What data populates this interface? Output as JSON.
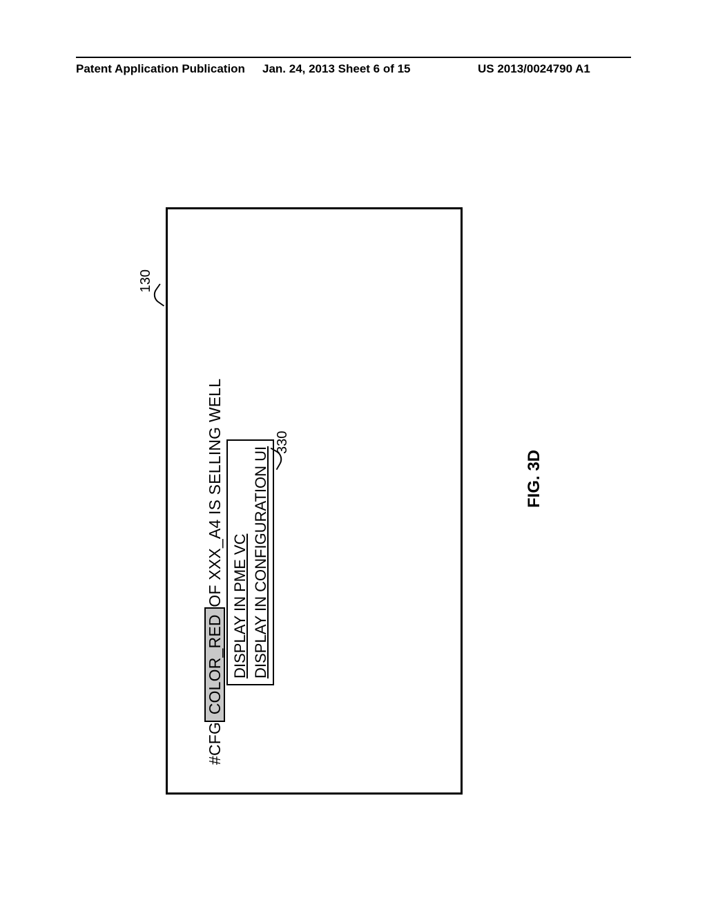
{
  "header": {
    "left": "Patent Application Publication",
    "center": "Jan. 24, 2013  Sheet 6 of 15",
    "right": "US 2013/0024790 A1"
  },
  "figure": {
    "label": "FIG. 3D",
    "main_box_ref": "130",
    "menu_ref": "330",
    "text_line": {
      "prefix": "#CFG",
      "highlighted": " COLOR_RED ",
      "suffix": " OF XXX_A4 IS SELLING WELL"
    },
    "context_menu": {
      "items": [
        "DISPLAY IN PME VC",
        "DISPLAY IN CONFIGURATION UI"
      ]
    }
  },
  "style": {
    "highlight_bg": "#c8c8c8",
    "border_color": "#000000",
    "page_bg": "#ffffff"
  }
}
